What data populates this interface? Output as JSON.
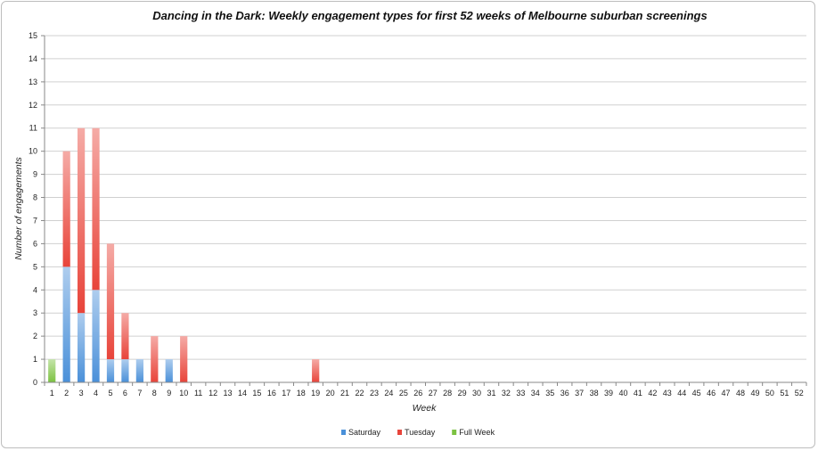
{
  "chart_data": {
    "type": "bar",
    "stacked": true,
    "title": "Dancing in the Dark: Weekly engagement types for first 52 weeks of Melbourne suburban screenings",
    "xlabel": "Week",
    "ylabel": "Number of engagements",
    "ylim": [
      0,
      15
    ],
    "yticks": [
      "0",
      "1",
      "2",
      "3",
      "4",
      "5",
      "6",
      "7",
      "8",
      "9",
      "10",
      "11",
      "12",
      "13",
      "14",
      "15"
    ],
    "grid": true,
    "legend_position": "bottom",
    "categories": [
      "1",
      "2",
      "3",
      "4",
      "5",
      "6",
      "7",
      "8",
      "9",
      "10",
      "11",
      "12",
      "13",
      "14",
      "15",
      "16",
      "17",
      "18",
      "19",
      "20",
      "21",
      "22",
      "23",
      "24",
      "25",
      "26",
      "27",
      "28",
      "29",
      "30",
      "31",
      "32",
      "33",
      "34",
      "35",
      "36",
      "37",
      "38",
      "39",
      "40",
      "41",
      "42",
      "43",
      "44",
      "45",
      "46",
      "47",
      "48",
      "49",
      "50",
      "51",
      "52"
    ],
    "series": [
      {
        "name": "Saturday",
        "color": "#4a90d9",
        "values": [
          0,
          5,
          3,
          4,
          1,
          1,
          1,
          0,
          1,
          0,
          0,
          0,
          0,
          0,
          0,
          0,
          0,
          0,
          0,
          0,
          0,
          0,
          0,
          0,
          0,
          0,
          0,
          0,
          0,
          0,
          0,
          0,
          0,
          0,
          0,
          0,
          0,
          0,
          0,
          0,
          0,
          0,
          0,
          0,
          0,
          0,
          0,
          0,
          0,
          0,
          0,
          0
        ]
      },
      {
        "name": "Tuesday",
        "color": "#e8443a",
        "values": [
          0,
          5,
          8,
          7,
          5,
          2,
          0,
          2,
          0,
          2,
          0,
          0,
          0,
          0,
          0,
          0,
          0,
          0,
          1,
          0,
          0,
          0,
          0,
          0,
          0,
          0,
          0,
          0,
          0,
          0,
          0,
          0,
          0,
          0,
          0,
          0,
          0,
          0,
          0,
          0,
          0,
          0,
          0,
          0,
          0,
          0,
          0,
          0,
          0,
          0,
          0,
          0
        ]
      },
      {
        "name": "Full Week",
        "color": "#7cc242",
        "values": [
          1,
          0,
          0,
          0,
          0,
          0,
          0,
          0,
          0,
          0,
          0,
          0,
          0,
          0,
          0,
          0,
          0,
          0,
          0,
          0,
          0,
          0,
          0,
          0,
          0,
          0,
          0,
          0,
          0,
          0,
          0,
          0,
          0,
          0,
          0,
          0,
          0,
          0,
          0,
          0,
          0,
          0,
          0,
          0,
          0,
          0,
          0,
          0,
          0,
          0,
          0,
          0
        ]
      }
    ]
  }
}
